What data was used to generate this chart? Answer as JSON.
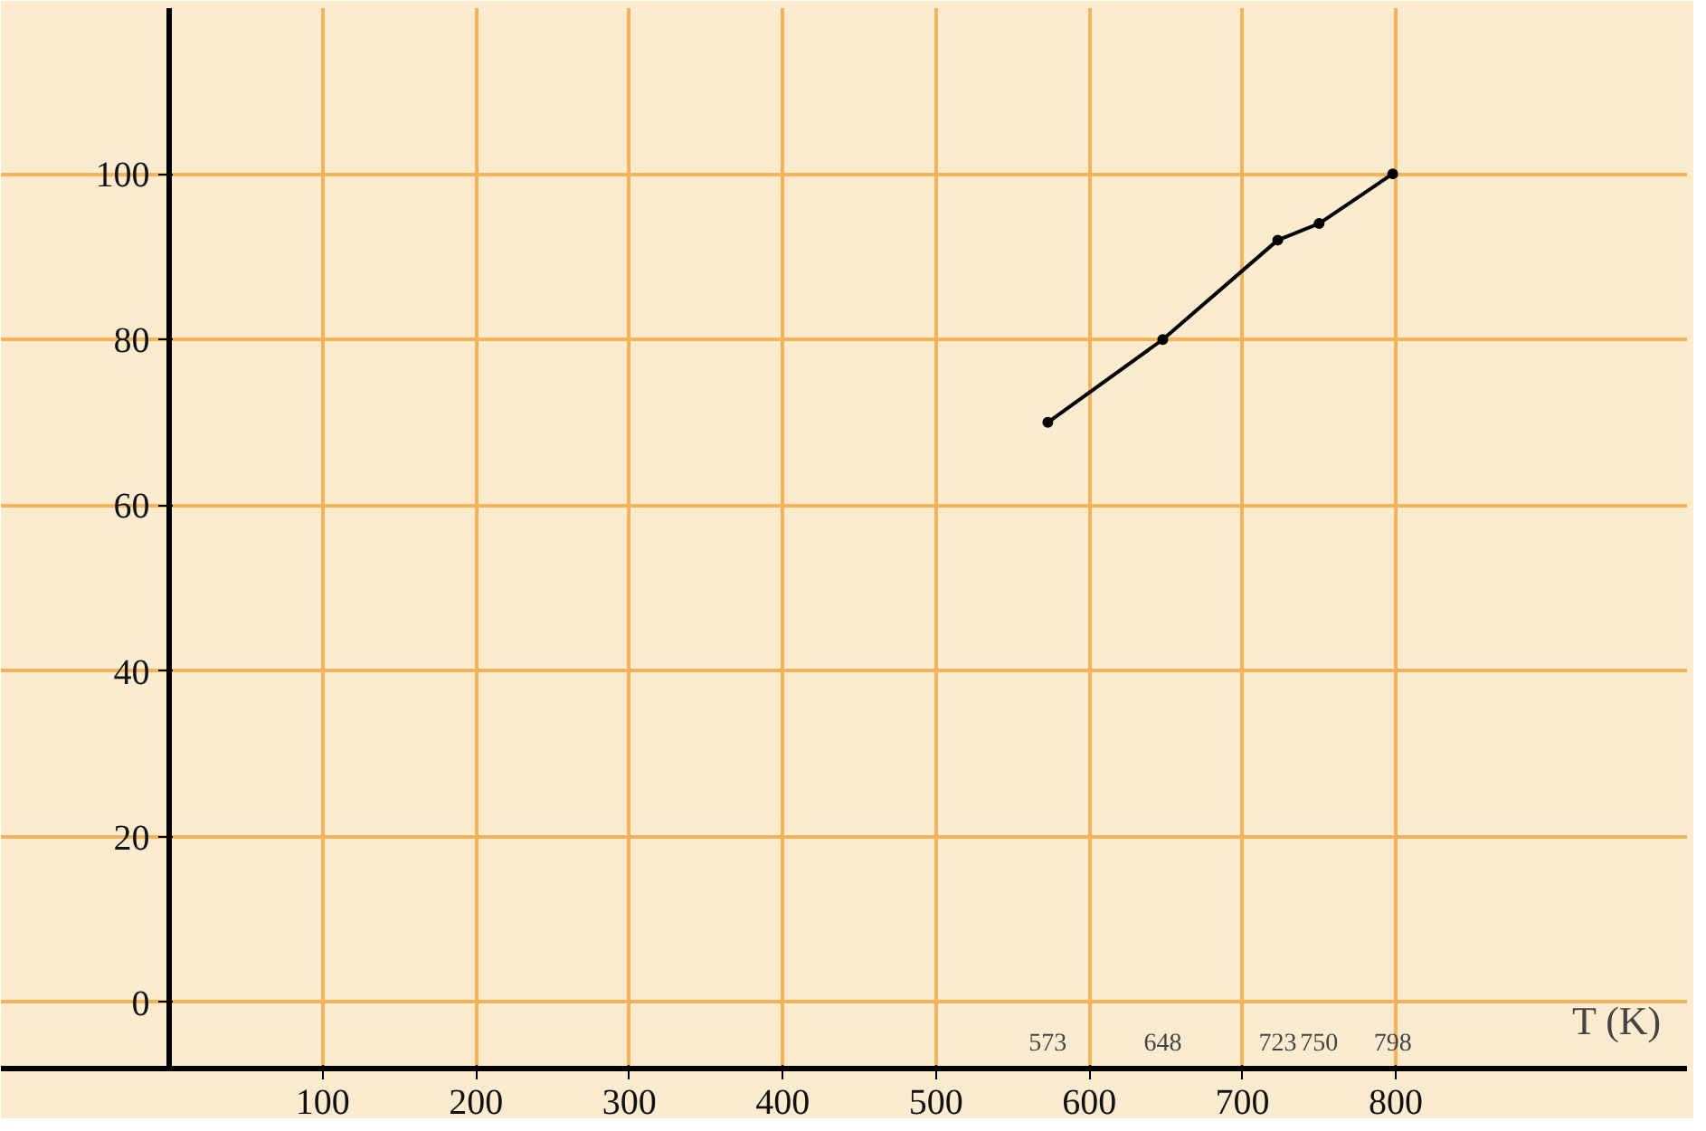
{
  "chart_data": {
    "type": "line",
    "xlabel": "T (K)",
    "x": [
      573,
      648,
      723,
      750,
      798
    ],
    "values": [
      70,
      80,
      92,
      94,
      100
    ],
    "color": "#000000",
    "xlim": [
      -110,
      990
    ],
    "ylim": [
      -8,
      120
    ],
    "xticks": [
      100,
      200,
      300,
      400,
      500,
      600,
      700,
      800
    ],
    "yticks": [
      0,
      20,
      40,
      60,
      80,
      100
    ],
    "x2lim": [
      -110,
      990
    ],
    "x2ticks": [
      573,
      648,
      723,
      750,
      798
    ],
    "grid": true,
    "marker": "circle",
    "line_style": "solid"
  }
}
